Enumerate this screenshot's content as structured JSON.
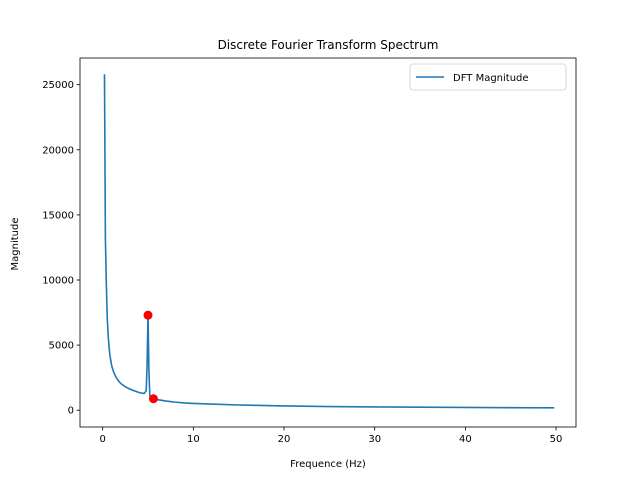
{
  "chart_data": {
    "type": "line",
    "title": "Discrete Fourier Transform Spectrum",
    "xlabel": "Frequence (Hz)",
    "ylabel": "Magnitude",
    "xlim": [
      -2.5,
      52.2
    ],
    "ylim": [
      -1290,
      27050
    ],
    "xticks": [
      0,
      10,
      20,
      30,
      40,
      50
    ],
    "yticks": [
      0,
      5000,
      10000,
      15000,
      20000,
      25000
    ],
    "grid": false,
    "legend": {
      "position": "top-right"
    },
    "series": [
      {
        "name": "DFT Magnitude",
        "color": "#1f77b4",
        "x": [
          0.2,
          0.3,
          0.4,
          0.5,
          0.6,
          0.7,
          0.8,
          1.0,
          1.2,
          1.5,
          1.8,
          2.0,
          2.5,
          3.0,
          3.5,
          4.0,
          4.4,
          4.6,
          4.8,
          4.9,
          5.0,
          5.1,
          5.2,
          5.4,
          5.5,
          5.6,
          6.0,
          7.0,
          8.0,
          9.0,
          10.0,
          12.0,
          15.0,
          20.0,
          25.0,
          30.0,
          35.0,
          40.0,
          45.0,
          49.8
        ],
        "y": [
          25800,
          13200,
          9800,
          7200,
          5800,
          4900,
          4200,
          3400,
          2950,
          2500,
          2200,
          2050,
          1800,
          1620,
          1480,
          1360,
          1300,
          1300,
          1500,
          3500,
          7300,
          3000,
          1100,
          960,
          920,
          880,
          820,
          700,
          620,
          560,
          520,
          470,
          400,
          330,
          280,
          250,
          230,
          210,
          195,
          185
        ]
      }
    ],
    "markers": {
      "color": "#ff0000",
      "points": [
        {
          "x": 5.0,
          "y": 7300
        },
        {
          "x": 5.6,
          "y": 880
        }
      ]
    }
  }
}
